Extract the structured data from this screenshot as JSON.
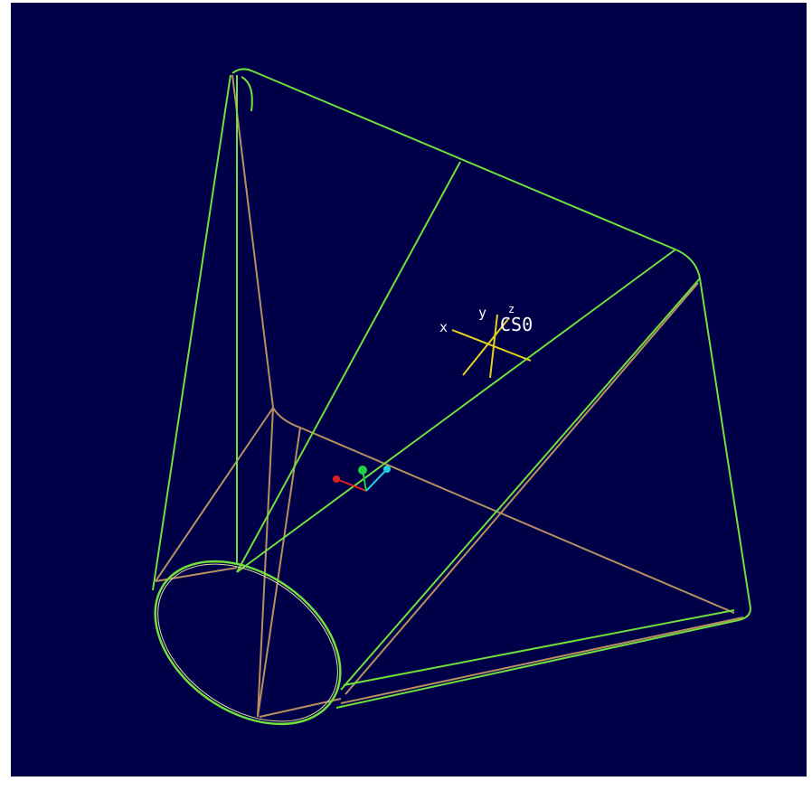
{
  "viewport": {
    "background": "#000048",
    "edge_color_silhouette": "#6FE03C",
    "edge_color_hidden": "#B89060"
  },
  "csys": {
    "name": "CS0",
    "axis_x_label": "x",
    "axis_y_label": "y",
    "axis_z_label": "z",
    "color": "#E8D020"
  },
  "triad": {
    "x_color": "#E02020",
    "y_color": "#20D040",
    "z_color": "#20D0E0"
  }
}
